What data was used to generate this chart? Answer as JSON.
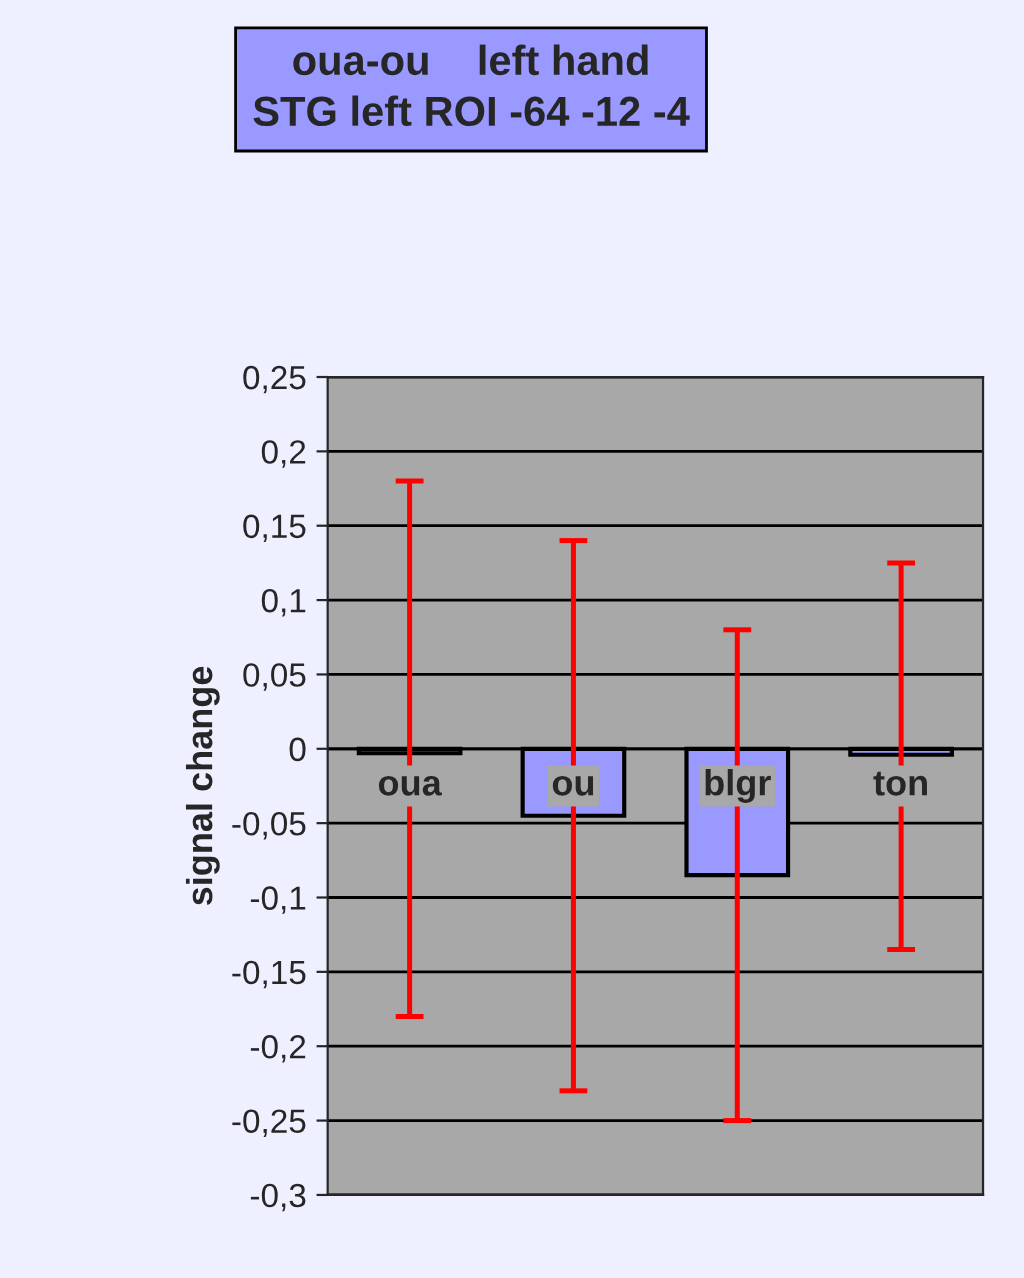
{
  "chart_data": {
    "type": "bar",
    "title": "oua-ou    left hand\nSTG left ROI -64 -12 -4",
    "ylabel": "signal change",
    "categories": [
      "oua",
      "ou",
      "blgr",
      "ton"
    ],
    "values": [
      -0.003,
      -0.045,
      -0.085,
      -0.004
    ],
    "color": "#9999ff",
    "errors": [
      [
        -0.18,
        0.18
      ],
      [
        -0.23,
        0.14
      ],
      [
        -0.25,
        0.08
      ],
      [
        -0.135,
        0.125
      ]
    ],
    "ylim": [
      -0.3,
      0.25
    ],
    "yticks": [
      {
        "value": -0.3,
        "label": "-0,3"
      },
      {
        "value": -0.25,
        "label": "-0,25"
      },
      {
        "value": -0.2,
        "label": "-0,2"
      },
      {
        "value": -0.15,
        "label": "-0,15"
      },
      {
        "value": -0.1,
        "label": "-0,1"
      },
      {
        "value": -0.05,
        "label": "-0,05"
      },
      {
        "value": 0,
        "label": "0"
      },
      {
        "value": 0.05,
        "label": "0,05"
      },
      {
        "value": 0.1,
        "label": "0,1"
      },
      {
        "value": 0.15,
        "label": "0,15"
      },
      {
        "value": 0.2,
        "label": "0,2"
      },
      {
        "value": 0.25,
        "label": "0,25"
      }
    ],
    "grid": "y"
  }
}
